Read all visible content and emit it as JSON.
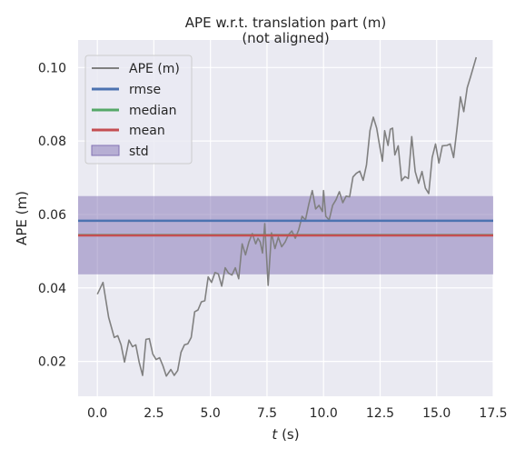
{
  "chart_data": {
    "type": "line",
    "title": "APE w.r.t. translation part (m)",
    "subtitle": "(not aligned)",
    "xlabel_italic": "t",
    "xlabel_rest": " (s)",
    "ylabel": "APE (m)",
    "xlim": [
      -0.85,
      17.5
    ],
    "ylim": [
      0.0105,
      0.1075
    ],
    "xticks": [
      0.0,
      2.5,
      5.0,
      7.5,
      10.0,
      12.5,
      15.0,
      17.5
    ],
    "xtick_labels": [
      "0.0",
      "2.5",
      "5.0",
      "7.5",
      "10.0",
      "12.5",
      "15.0",
      "17.5"
    ],
    "yticks": [
      0.02,
      0.04,
      0.06,
      0.08,
      0.1
    ],
    "ytick_labels": [
      "0.02",
      "0.04",
      "0.06",
      "0.08",
      "0.10"
    ],
    "grid": true,
    "legend_position": "top-left",
    "legend": [
      "APE (m)",
      "rmse",
      "median",
      "mean",
      "std"
    ],
    "stats": {
      "rmse": 0.0583,
      "median": 0.0544,
      "mean": 0.0543,
      "std_band": [
        0.0437,
        0.065
      ]
    },
    "colors": {
      "ape": "#808080",
      "rmse": "#4c72b0",
      "median": "#55a868",
      "mean": "#c44e52",
      "std": "#8172b3",
      "background": "#eaeaf2",
      "grid": "#ffffff"
    },
    "series": [
      {
        "name": "APE (m)",
        "x": [
          0.0,
          0.25,
          0.5,
          0.75,
          0.9,
          1.05,
          1.2,
          1.4,
          1.55,
          1.7,
          1.85,
          2.0,
          2.15,
          2.3,
          2.45,
          2.6,
          2.75,
          2.9,
          3.05,
          3.25,
          3.4,
          3.55,
          3.7,
          3.85,
          4.0,
          4.15,
          4.3,
          4.45,
          4.6,
          4.75,
          4.9,
          5.05,
          5.2,
          5.35,
          5.5,
          5.65,
          5.8,
          5.95,
          6.1,
          6.25,
          6.4,
          6.55,
          6.7,
          6.85,
          7.0,
          7.1,
          7.2,
          7.3,
          7.4,
          7.55,
          7.7,
          7.85,
          8.0,
          8.15,
          8.3,
          8.45,
          8.6,
          8.75,
          8.9,
          9.05,
          9.2,
          9.35,
          9.5,
          9.65,
          9.8,
          9.95,
          10.0,
          10.1,
          10.25,
          10.4,
          10.55,
          10.7,
          10.85,
          11.0,
          11.15,
          11.3,
          11.45,
          11.6,
          11.75,
          11.9,
          12.05,
          12.2,
          12.35,
          12.45,
          12.6,
          12.7,
          12.85,
          12.95,
          13.05,
          13.15,
          13.3,
          13.45,
          13.6,
          13.75,
          13.9,
          14.05,
          14.2,
          14.35,
          14.5,
          14.65,
          14.8,
          14.95,
          15.1,
          15.25,
          15.45,
          15.6,
          15.75,
          15.9,
          16.05,
          16.2,
          16.35,
          16.5,
          16.75
        ],
        "y": [
          0.0383,
          0.0415,
          0.032,
          0.0265,
          0.027,
          0.0245,
          0.0198,
          0.0258,
          0.024,
          0.0245,
          0.0198,
          0.0162,
          0.026,
          0.0262,
          0.022,
          0.0205,
          0.021,
          0.0188,
          0.016,
          0.0178,
          0.0162,
          0.0175,
          0.0225,
          0.0245,
          0.0248,
          0.0265,
          0.0335,
          0.034,
          0.0362,
          0.0365,
          0.043,
          0.0415,
          0.0442,
          0.0438,
          0.0405,
          0.0455,
          0.044,
          0.0435,
          0.0455,
          0.0425,
          0.052,
          0.049,
          0.0525,
          0.0548,
          0.052,
          0.0535,
          0.0525,
          0.0495,
          0.0575,
          0.0407,
          0.055,
          0.0507,
          0.0538,
          0.0512,
          0.0525,
          0.0545,
          0.0555,
          0.0535,
          0.0558,
          0.0595,
          0.0585,
          0.0628,
          0.0665,
          0.0615,
          0.0625,
          0.0608,
          0.0665,
          0.0595,
          0.0585,
          0.0625,
          0.064,
          0.0662,
          0.0632,
          0.065,
          0.0648,
          0.0702,
          0.0712,
          0.0718,
          0.0693,
          0.0735,
          0.0828,
          0.0865,
          0.0835,
          0.0798,
          0.0745,
          0.0828,
          0.0788,
          0.0832,
          0.0835,
          0.0762,
          0.0787,
          0.0692,
          0.0703,
          0.0698,
          0.0812,
          0.0717,
          0.0685,
          0.0717,
          0.0672,
          0.0657,
          0.0755,
          0.0792,
          0.074,
          0.0787,
          0.0788,
          0.0792,
          0.0755,
          0.0835,
          0.092,
          0.088,
          0.0945,
          0.0975,
          0.1028
        ]
      }
    ]
  }
}
